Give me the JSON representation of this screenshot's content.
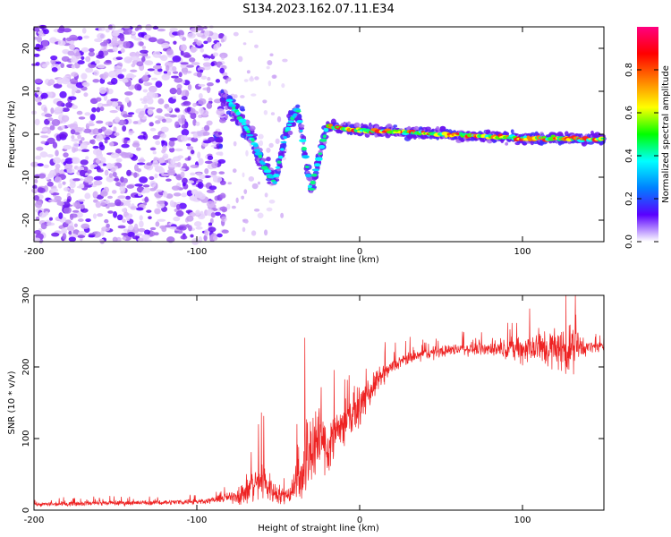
{
  "title": "S134.2023.162.07.11.E34",
  "chart_data": [
    {
      "type": "heatmap",
      "xlabel": "Height of straight line (km)",
      "ylabel": "Frequency (Hz)",
      "xlim": [
        -200,
        150
      ],
      "ylim": [
        -25,
        25
      ],
      "xticks": [
        -200,
        -100,
        0,
        100
      ],
      "yticks": [
        -20,
        -10,
        0,
        10,
        20
      ],
      "colorbar": {
        "label": "Normalized spectral amplitude",
        "range": [
          0,
          1
        ],
        "ticks": [
          "0.0",
          "0.2",
          "0.4",
          "0.6",
          "0.8"
        ],
        "colors": [
          "#ffffff",
          "#5a00ff",
          "#0080ff",
          "#00ffff",
          "#00ff00",
          "#ffff00",
          "#ff8000",
          "#ff0000",
          "#ff0080"
        ]
      },
      "signal_track": [
        {
          "x": -85,
          "y": 10
        },
        {
          "x": -75,
          "y": 5
        },
        {
          "x": -65,
          "y": -2
        },
        {
          "x": -58,
          "y": -8
        },
        {
          "x": -52,
          "y": -11
        },
        {
          "x": -45,
          "y": 1
        },
        {
          "x": -38,
          "y": 6
        },
        {
          "x": -30,
          "y": -13
        },
        {
          "x": -20,
          "y": 2
        },
        {
          "x": 0,
          "y": 1
        },
        {
          "x": 50,
          "y": 0
        },
        {
          "x": 100,
          "y": -1
        },
        {
          "x": 150,
          "y": -1
        }
      ],
      "grid": false
    },
    {
      "type": "line",
      "xlabel": "Height of straight line (km)",
      "ylabel": "SNR (10 * v/v)",
      "xlim": [
        -200,
        150
      ],
      "ylim": [
        0,
        300
      ],
      "xticks": [
        -200,
        -100,
        0,
        100
      ],
      "yticks": [
        0,
        100,
        200,
        300
      ],
      "color": "#ee2222",
      "grid": false,
      "series": [
        {
          "x": [
            -200,
            -180,
            -160,
            -140,
            -120,
            -100,
            -90,
            -80,
            -70,
            -60,
            -55,
            -50,
            -45,
            -40,
            -35,
            -30,
            -25,
            -20,
            -15,
            -10,
            -5,
            0,
            5,
            10,
            15,
            20,
            25,
            30,
            40,
            50,
            60,
            70,
            80,
            90,
            100,
            110,
            120,
            130,
            140,
            150
          ],
          "values": [
            8,
            9,
            10,
            10,
            11,
            12,
            14,
            18,
            25,
            45,
            30,
            22,
            20,
            35,
            60,
            90,
            100,
            85,
            110,
            120,
            135,
            145,
            160,
            178,
            190,
            200,
            207,
            212,
            218,
            222,
            225,
            226,
            225,
            226,
            225,
            228,
            225,
            226,
            228,
            228
          ],
          "noise": [
            4,
            5,
            5,
            5,
            5,
            6,
            6,
            10,
            30,
            45,
            30,
            20,
            15,
            40,
            80,
            100,
            70,
            65,
            55,
            45,
            40,
            38,
            30,
            25,
            20,
            15,
            14,
            13,
            12,
            12,
            12,
            14,
            15,
            18,
            30,
            40,
            45,
            50,
            12,
            10
          ]
        }
      ]
    }
  ]
}
